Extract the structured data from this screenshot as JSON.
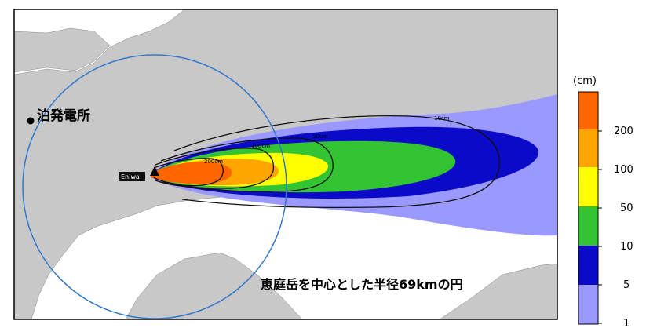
{
  "map": {
    "plant_label": "泊発電所",
    "volcano_label": "Eniwa",
    "circle_caption": "恵庭岳を中心とした半径69kmの円",
    "contour_labels": [
      "10cm",
      "50cm",
      "100cm",
      "200cm"
    ]
  },
  "legend": {
    "unit": "(cm)",
    "bands": [
      {
        "from": 1,
        "to": 5,
        "color": "#9999ff"
      },
      {
        "from": 5,
        "to": 10,
        "color": "#0a0ac8"
      },
      {
        "from": 10,
        "to": 50,
        "color": "#33c433"
      },
      {
        "from": 50,
        "to": 100,
        "color": "#ffff00"
      },
      {
        "from": 100,
        "to": 200,
        "color": "#ffa500"
      },
      {
        "from": 200,
        "to": null,
        "color": "#ff6600"
      }
    ],
    "ticks": [
      "200",
      "100",
      "50",
      "10",
      "5",
      "1"
    ]
  },
  "colors": {
    "land": "#c8c8c8",
    "sea": "#ffffff",
    "circle": "#3377cc"
  }
}
